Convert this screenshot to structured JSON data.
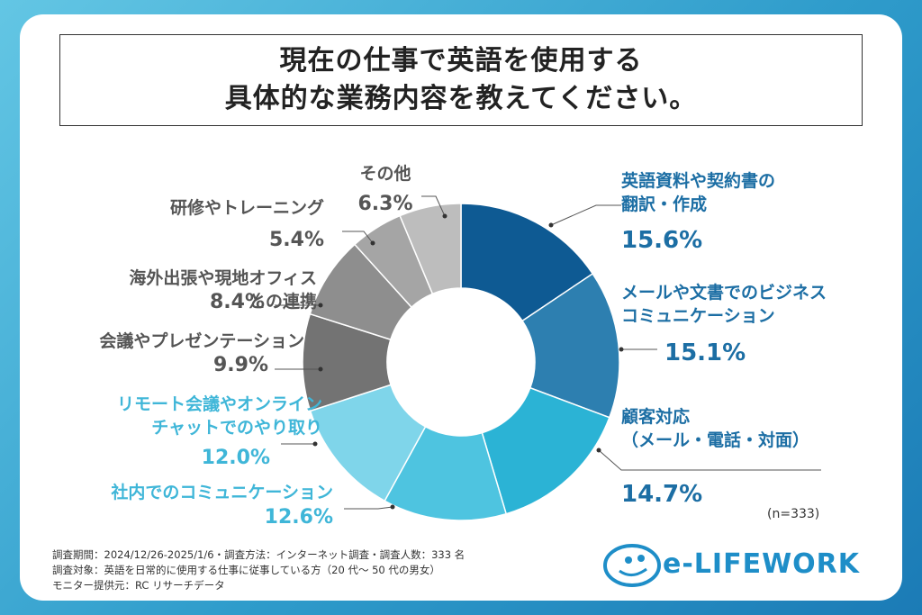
{
  "title": {
    "line1": "現在の仕事で英語を使用する",
    "line2": "具体的な業務内容を教えてください。"
  },
  "chart_data": {
    "type": "pie",
    "donut": true,
    "slices": [
      {
        "label_lines": [
          "英語資料や契約書の",
          "翻訳・作成"
        ],
        "value": 15.6,
        "value_label": "15.6%",
        "color": "#0e5a93"
      },
      {
        "label_lines": [
          "メールや文書でのビジネス",
          "コミュニケーション"
        ],
        "value": 15.1,
        "value_label": "15.1%",
        "color": "#2d7fb0"
      },
      {
        "label_lines": [
          "顧客対応",
          "（メール・電話・対面）"
        ],
        "value": 14.7,
        "value_label": "14.7%",
        "color": "#2bb3d5"
      },
      {
        "label_lines": [
          "社内でのコミュニケーション"
        ],
        "value": 12.6,
        "value_label": "12.6%",
        "color": "#4ec4e0"
      },
      {
        "label_lines": [
          "リモート会議やオンライン",
          "チャットでのやり取り"
        ],
        "value": 12.0,
        "value_label": "12.0%",
        "color": "#7fd5ea"
      },
      {
        "label_lines": [
          "会議やプレゼンテーション"
        ],
        "value": 9.9,
        "value_label": "9.9%",
        "color": "#737373"
      },
      {
        "label_lines": [
          "海外出張や現地オフィス",
          "との連携"
        ],
        "value": 8.4,
        "value_label": "8.4%",
        "color": "#8e8e8e"
      },
      {
        "label_lines": [
          "研修やトレーニング"
        ],
        "value": 5.4,
        "value_label": "5.4%",
        "color": "#a5a5a5"
      },
      {
        "label_lines": [
          "その他"
        ],
        "value": 6.3,
        "value_label": "6.3%",
        "color": "#bdbdbd"
      }
    ],
    "n_label": "(n=333)"
  },
  "footnotes": [
    "調査期間：2024/12/26-2025/1/6・調査方法：インターネット調査・調査人数：333 名",
    "調査対象：英語を日常的に使用する仕事に従事している方（20 代～ 50 代の男女）",
    "モニター提供元：RC リサーチデータ"
  ],
  "logo": {
    "text": "e-LIFEWORK",
    "color": "#1e8ec8"
  },
  "colors": {
    "label_blue": "#1c6ea4",
    "label_light": "#3fb6d8",
    "label_gray": "#555555"
  }
}
